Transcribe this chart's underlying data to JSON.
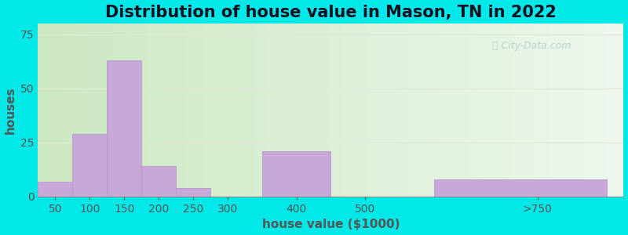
{
  "title": "Distribution of house value in Mason, TN in 2022",
  "xlabel": "house value ($1000)",
  "ylabel": "houses",
  "bin_edges": [
    25,
    75,
    125,
    175,
    225,
    275,
    350,
    450,
    600,
    850
  ],
  "tick_positions": [
    50,
    100,
    150,
    200,
    250,
    300,
    400,
    500,
    750
  ],
  "tick_labels": [
    "50",
    "100",
    "150",
    "200",
    "250",
    "300",
    "400",
    "500",
    ">750"
  ],
  "bar_values": [
    7,
    29,
    63,
    14,
    4,
    0,
    21,
    0,
    8
  ],
  "bar_color": "#c8a8d8",
  "bar_edge_color": "#b898c8",
  "yticks": [
    0,
    25,
    50,
    75
  ],
  "ylim": [
    0,
    80
  ],
  "xlim": [
    25,
    875
  ],
  "title_fontsize": 15,
  "label_fontsize": 11,
  "tick_fontsize": 10,
  "bg_color_left": "#cce8c0",
  "bg_color_right": "#eef8ee",
  "outer_color": "#00e8e8",
  "watermark_text": "City-Data.com",
  "title_color": "#111122",
  "axis_label_color": "#555555",
  "tick_color": "#555555",
  "grid_color": "#e0e8d8"
}
